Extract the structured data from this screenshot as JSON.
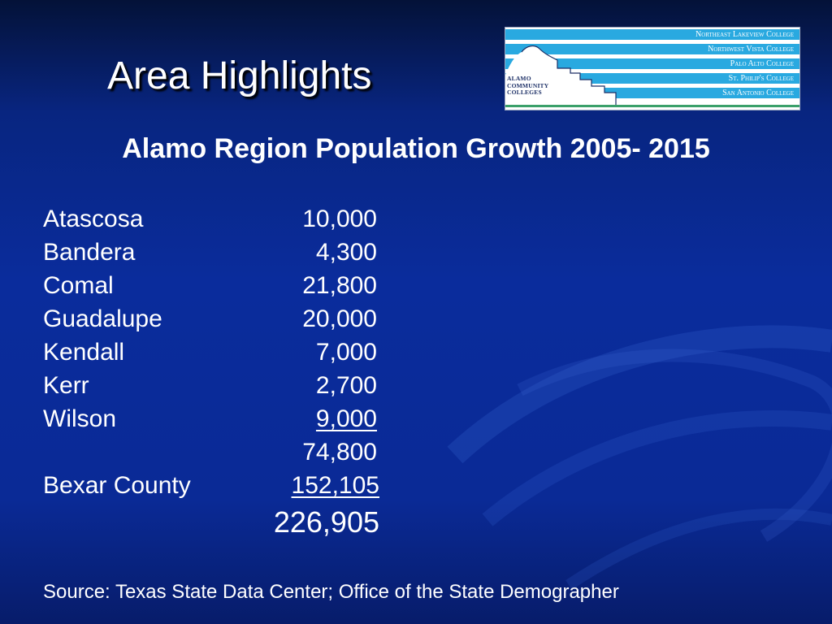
{
  "slide": {
    "title": "Area Highlights",
    "subtitle": "Alamo Region Population Growth 2005- 2015",
    "source": "Source:  Texas State Data Center; Office of the State Demographer"
  },
  "logo": {
    "name_lines": [
      "ALAMO",
      "COMMUNITY",
      "COLLEGES"
    ],
    "colleges": [
      "Northeast Lakeview College",
      "Northwest Vista College",
      "Palo Alto College",
      "St. Philip's College",
      "San Antonio College"
    ],
    "colors": {
      "stripe": "#29a9e0",
      "text": "#1c2f66",
      "accent": "#3aa06a"
    }
  },
  "table": {
    "rows": [
      {
        "name": "Atascosa",
        "value": "10,000"
      },
      {
        "name": "Bandera",
        "value": "4,300"
      },
      {
        "name": "Comal",
        "value": "21,800"
      },
      {
        "name": "Guadalupe",
        "value": "20,000"
      },
      {
        "name": "Kendall",
        "value": "7,000"
      },
      {
        "name": "Kerr",
        "value": "2,700"
      },
      {
        "name": "Wilson",
        "value": "9,000"
      }
    ],
    "subtotal": "74,800",
    "bexar": {
      "name": "Bexar County",
      "value": "152,105"
    },
    "grand_total": "226,905"
  },
  "colors": {
    "background": "#0a2c9c",
    "text": "#ffffff"
  }
}
